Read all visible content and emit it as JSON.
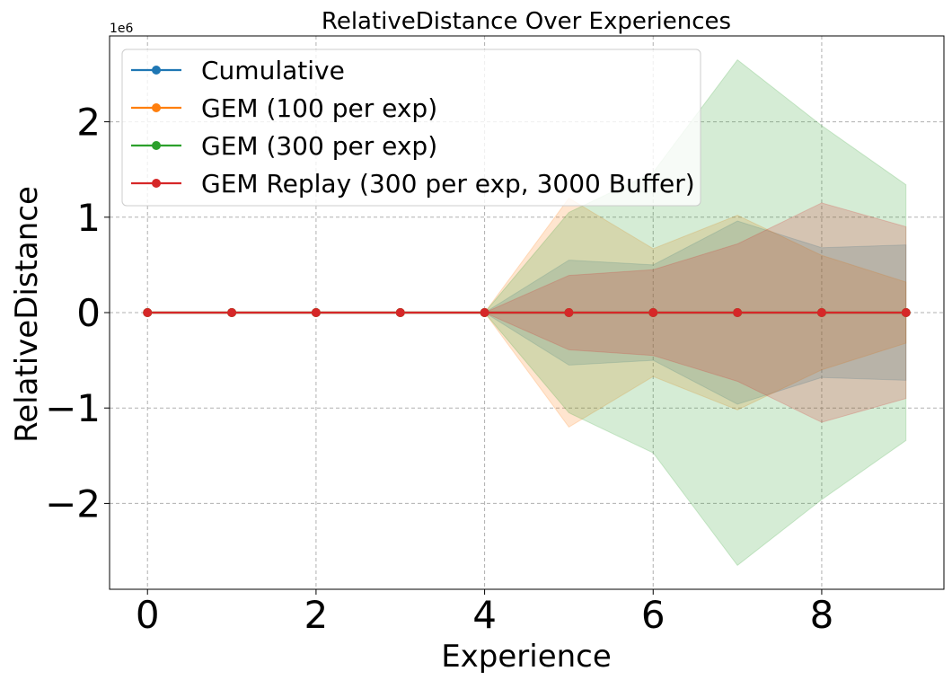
{
  "chart_data": {
    "type": "line",
    "title": "RelativeDistance Over Experiences",
    "xlabel": "Experience",
    "ylabel": "RelativeDistance",
    "y_offset_label": "1e6",
    "y_scale_multiplier": 1000000,
    "xlim": [
      -0.45,
      9.45
    ],
    "ylim": [
      -2900000,
      2900000
    ],
    "x_ticks": [
      0,
      2,
      4,
      6,
      8
    ],
    "x_tick_labels": [
      "0",
      "2",
      "4",
      "6",
      "8"
    ],
    "y_ticks": [
      -2000000,
      -1000000,
      0,
      1000000,
      2000000
    ],
    "y_tick_labels": [
      "−2",
      "−1",
      "0",
      "1",
      "2"
    ],
    "grid": true,
    "legend_position": "top-left",
    "x": [
      0,
      1,
      2,
      3,
      4,
      5,
      6,
      7,
      8,
      9
    ],
    "series": [
      {
        "name": "Cumulative",
        "color": "#1f77b4",
        "values": [
          0,
          0,
          0,
          0,
          0,
          0,
          0,
          0,
          0,
          0
        ],
        "band_upper": [
          0,
          0,
          0,
          0,
          0,
          550000,
          500000,
          960000,
          680000,
          710000
        ],
        "band_lower": [
          0,
          0,
          0,
          0,
          0,
          -550000,
          -500000,
          -960000,
          -680000,
          -710000
        ]
      },
      {
        "name": "GEM (100 per exp)",
        "color": "#ff7f0e",
        "values": [
          0,
          0,
          0,
          0,
          0,
          0,
          0,
          0,
          0,
          0
        ],
        "band_upper": [
          0,
          0,
          0,
          0,
          0,
          1200000,
          670000,
          1020000,
          600000,
          320000
        ],
        "band_lower": [
          0,
          0,
          0,
          0,
          0,
          -1200000,
          -670000,
          -1020000,
          -600000,
          -320000
        ]
      },
      {
        "name": "GEM (300 per exp)",
        "color": "#2ca02c",
        "values": [
          0,
          0,
          0,
          0,
          0,
          0,
          0,
          0,
          0,
          0
        ],
        "band_upper": [
          0,
          0,
          0,
          0,
          0,
          1050000,
          1470000,
          2650000,
          1960000,
          1340000
        ],
        "band_lower": [
          0,
          0,
          0,
          0,
          0,
          -1050000,
          -1470000,
          -2650000,
          -1960000,
          -1340000
        ]
      },
      {
        "name": "GEM Replay (300 per exp, 3000 Buffer)",
        "color": "#d62728",
        "values": [
          0,
          0,
          0,
          0,
          0,
          0,
          0,
          0,
          0,
          0
        ],
        "band_upper": [
          0,
          0,
          0,
          0,
          0,
          390000,
          450000,
          720000,
          1150000,
          900000
        ],
        "band_lower": [
          0,
          0,
          0,
          0,
          0,
          -390000,
          -450000,
          -720000,
          -1150000,
          -900000
        ]
      }
    ]
  }
}
